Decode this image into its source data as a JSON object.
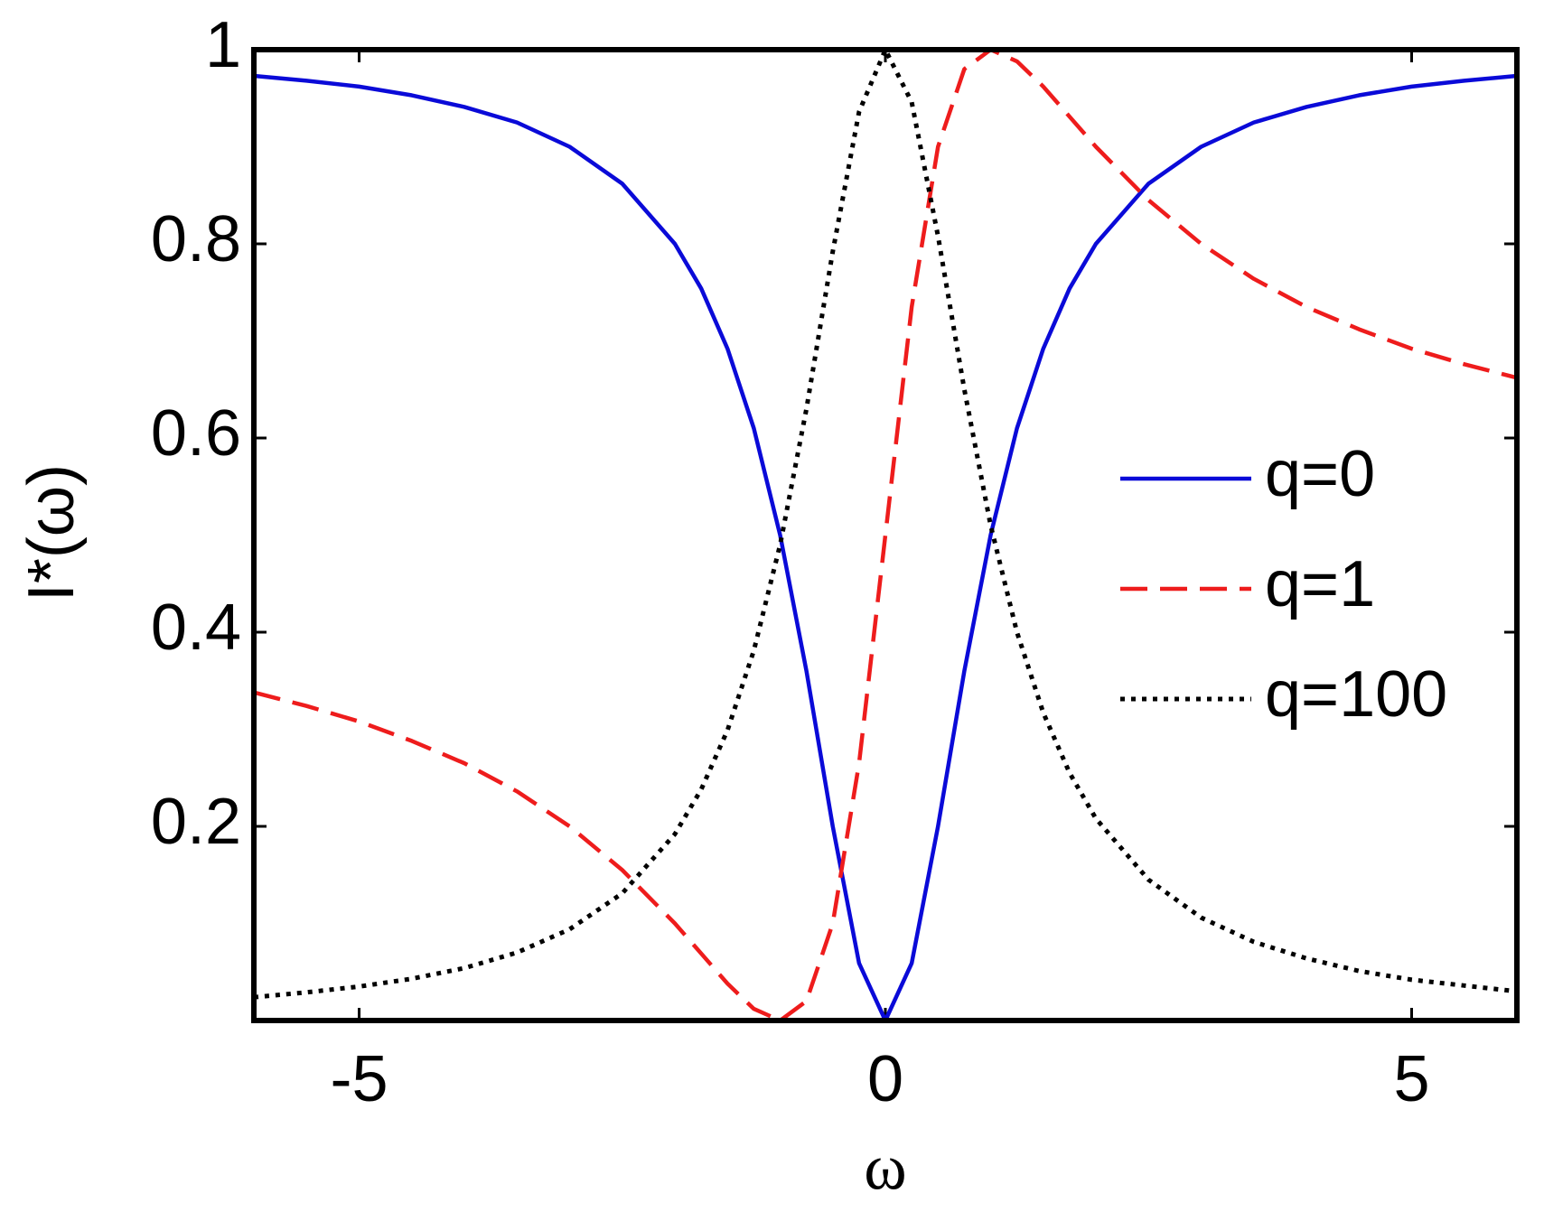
{
  "chart_data": {
    "type": "line",
    "xlabel": "ω",
    "ylabel": "I*(ω)",
    "x": [
      -6,
      -5.5,
      -5,
      -4.5,
      -4,
      -3.5,
      -3,
      -2.5,
      -2,
      -1.75,
      -1.5,
      -1.25,
      -1,
      -0.75,
      -0.5,
      -0.25,
      0,
      0.25,
      0.5,
      0.75,
      1,
      1.25,
      1.5,
      1.75,
      2,
      2.5,
      3,
      3.5,
      4,
      4.5,
      5,
      5.5,
      6
    ],
    "series": [
      {
        "name": "q=0",
        "color": "#0a0ad8",
        "linestyle": "solid",
        "values": [
          0.973,
          0.968,
          0.962,
          0.953,
          0.941,
          0.925,
          0.9,
          0.862,
          0.8,
          0.754,
          0.692,
          0.61,
          0.5,
          0.36,
          0.2,
          0.059,
          0,
          0.059,
          0.2,
          0.36,
          0.5,
          0.61,
          0.692,
          0.754,
          0.8,
          0.862,
          0.9,
          0.925,
          0.941,
          0.953,
          0.962,
          0.968,
          0.973
        ]
      },
      {
        "name": "q=1",
        "color": "#ee1c1c",
        "linestyle": "dashed",
        "values": [
          0.338,
          0.324,
          0.308,
          0.288,
          0.265,
          0.236,
          0.2,
          0.155,
          0.1,
          0.069,
          0.038,
          0.012,
          0,
          0.02,
          0.1,
          0.265,
          0.5,
          0.735,
          0.9,
          0.98,
          1,
          0.988,
          0.962,
          0.931,
          0.9,
          0.845,
          0.8,
          0.764,
          0.735,
          0.712,
          0.692,
          0.676,
          0.662
        ]
      },
      {
        "name": "q=100",
        "color": "#000000",
        "linestyle": "dotted",
        "values": [
          0.024,
          0.029,
          0.035,
          0.043,
          0.054,
          0.07,
          0.094,
          0.131,
          0.192,
          0.238,
          0.299,
          0.381,
          0.49,
          0.63,
          0.792,
          0.936,
          1,
          0.946,
          0.808,
          0.65,
          0.51,
          0.4,
          0.317,
          0.255,
          0.208,
          0.145,
          0.106,
          0.081,
          0.064,
          0.051,
          0.042,
          0.036,
          0.03
        ]
      }
    ],
    "xlim": [
      -6,
      6
    ],
    "ylim": [
      0,
      1
    ],
    "xticks": [
      -5,
      0,
      5
    ],
    "yticks": [
      0.2,
      0.4,
      0.6,
      0.8,
      1
    ],
    "legend": "right"
  }
}
